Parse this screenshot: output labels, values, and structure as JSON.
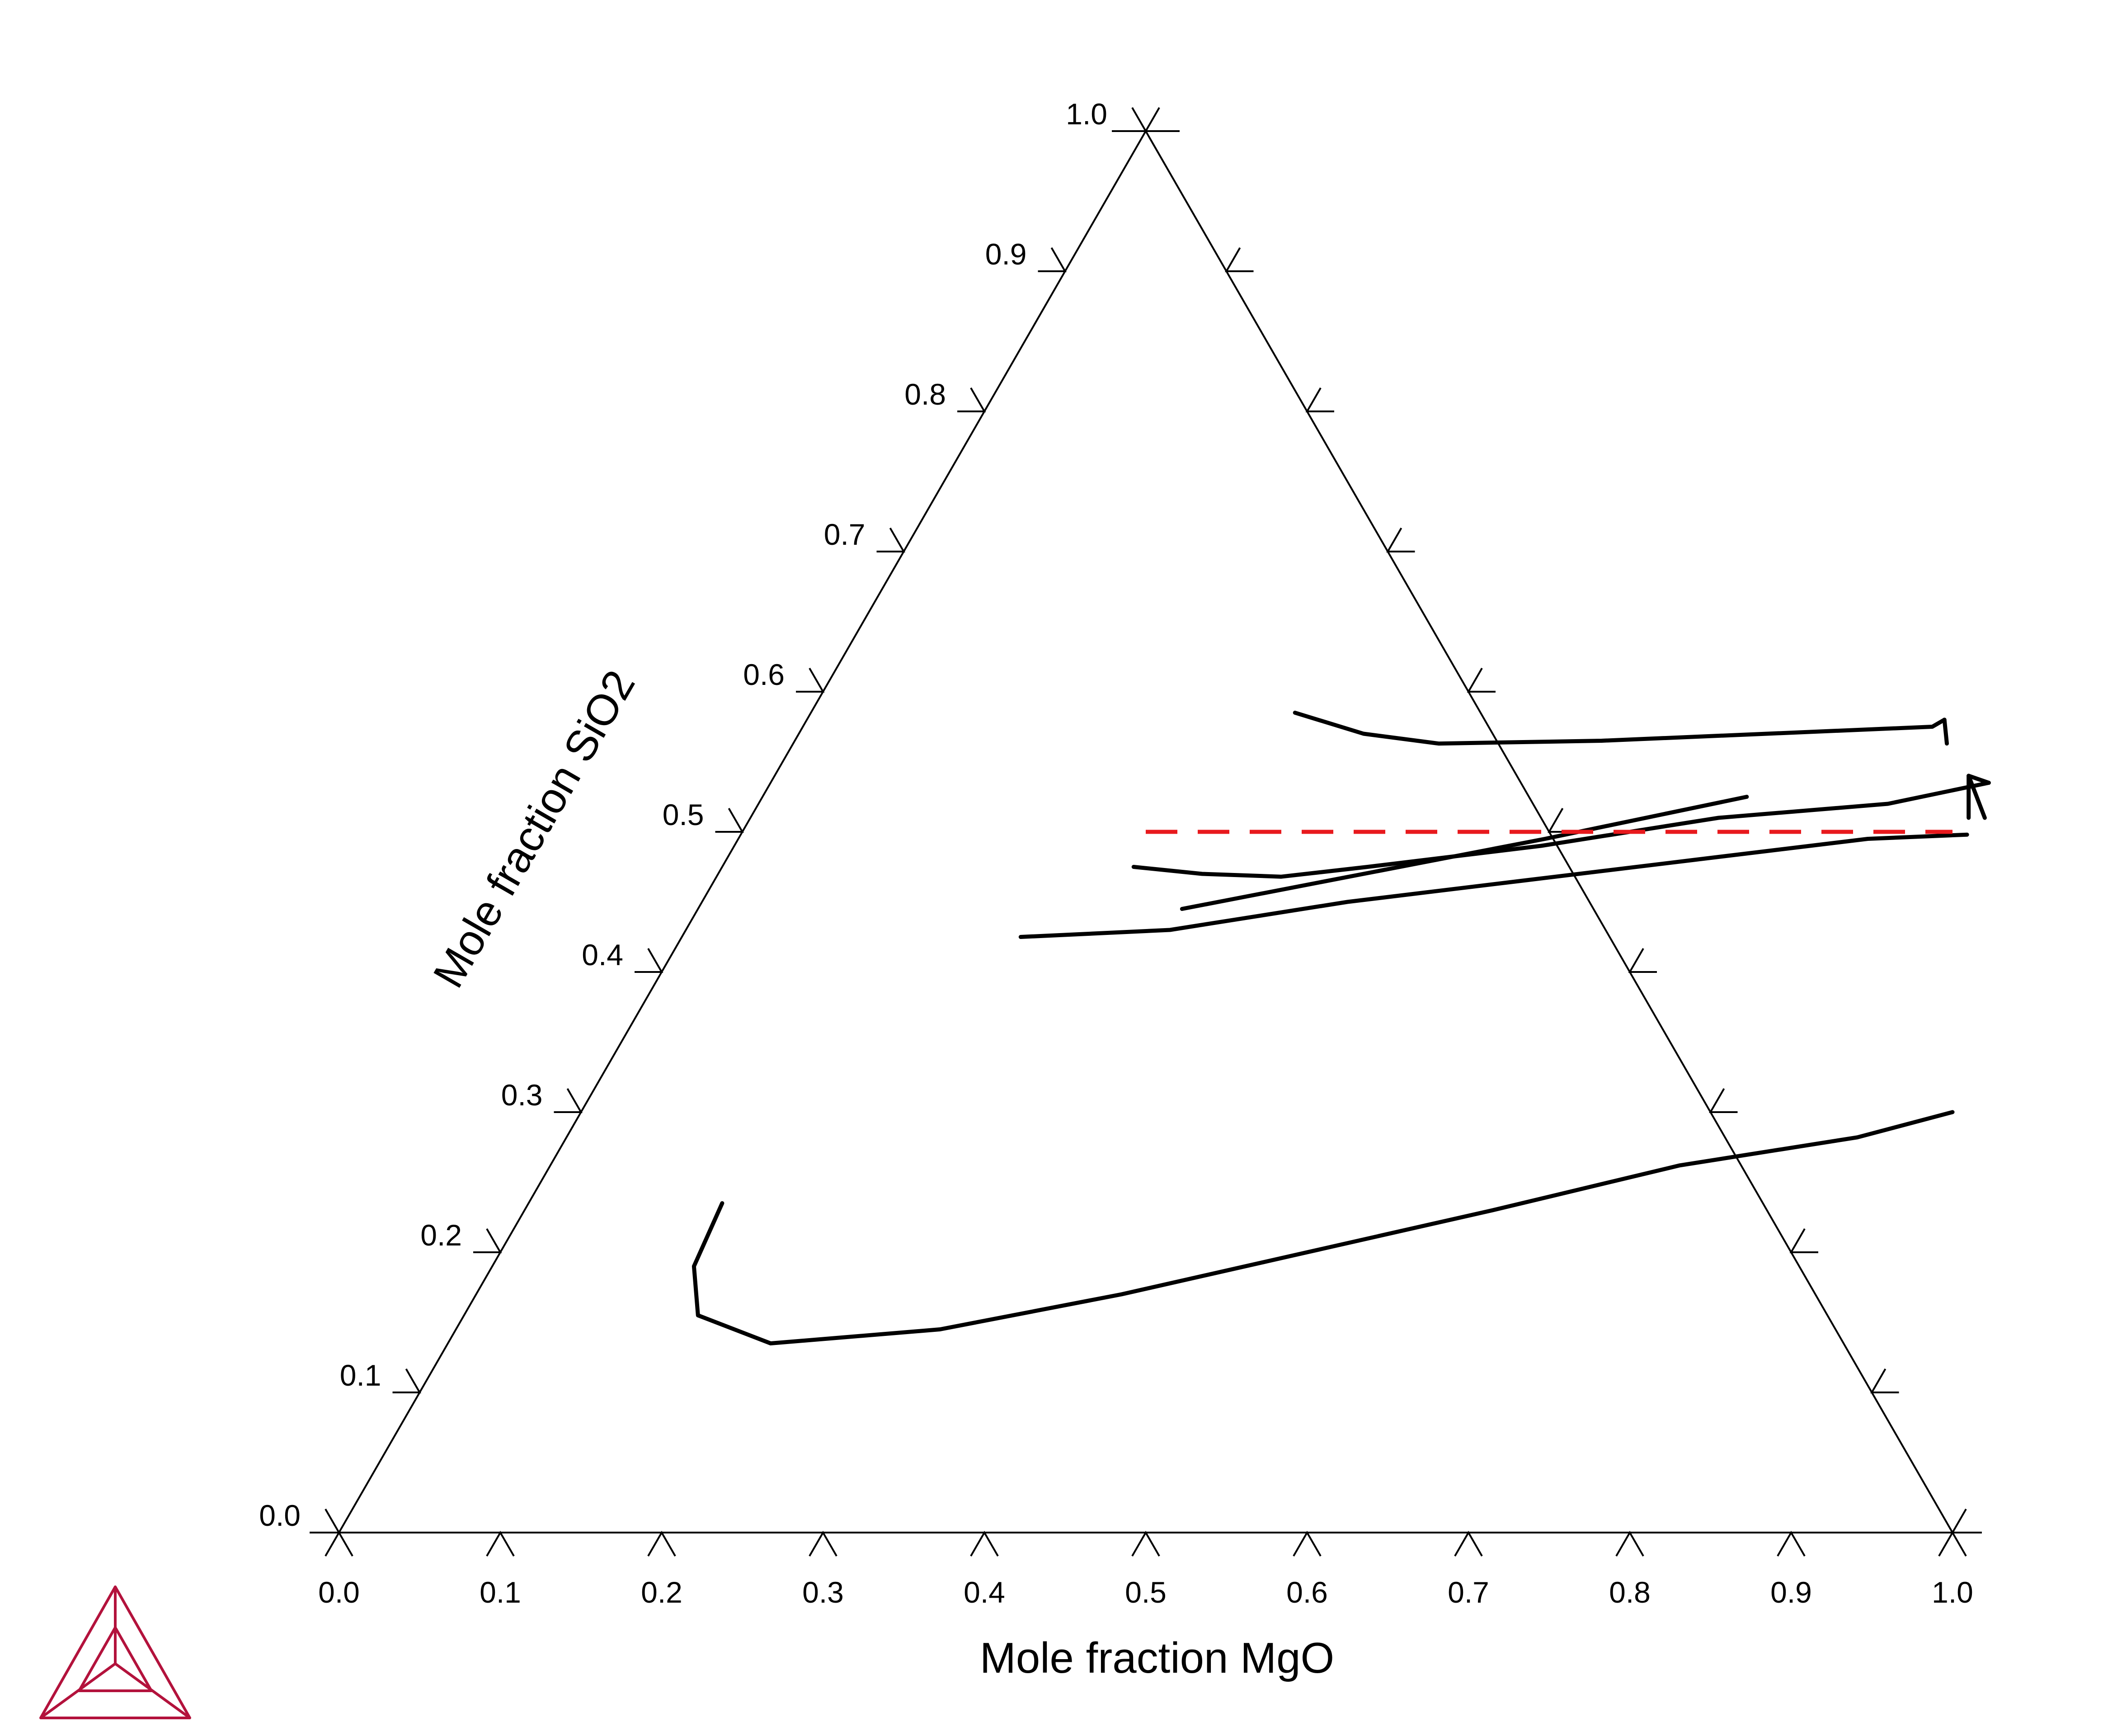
{
  "chart_data": {
    "type": "ternary",
    "xlabel": "Mole fraction MgO",
    "ylabel": "Mole fraction SiO2",
    "xlim": [
      0.0,
      1.0
    ],
    "ylim": [
      0.0,
      1.0
    ],
    "x_ticks": [
      "0.0",
      "0.1",
      "0.2",
      "0.3",
      "0.4",
      "0.5",
      "0.6",
      "0.7",
      "0.8",
      "0.9",
      "1.0"
    ],
    "y_ticks": [
      "0.0",
      "0.1",
      "0.2",
      "0.3",
      "0.4",
      "0.5",
      "0.6",
      "0.7",
      "0.8",
      "0.9",
      "1.0"
    ],
    "boundary_color": "#000000",
    "isopleth_color": "#e8191d",
    "series": [
      {
        "points": [
          [
            0.3,
            0.585
          ],
          [
            0.35,
            0.57
          ],
          [
            0.4,
            0.563
          ],
          [
            0.5,
            0.565
          ],
          [
            0.6,
            0.57
          ],
          [
            0.7,
            0.575
          ],
          [
            0.705,
            0.58
          ]
        ]
      },
      {
        "points": [
          [
            0.705,
            0.58
          ],
          [
            0.715,
            0.563
          ]
        ]
      },
      {
        "points": [
          [
            0.255,
            0.475
          ],
          [
            0.3,
            0.47
          ],
          [
            0.35,
            0.468
          ],
          [
            0.4,
            0.475
          ],
          [
            0.5,
            0.49
          ],
          [
            0.6,
            0.51
          ],
          [
            0.7,
            0.52
          ],
          [
            0.755,
            0.535
          ]
        ]
      },
      {
        "points": [
          [
            0.755,
            0.535
          ],
          [
            0.74,
            0.54
          ],
          [
            0.755,
            0.51
          ]
        ]
      },
      {
        "points": [
          [
            0.74,
            0.54
          ],
          [
            0.765,
            0.51
          ]
        ]
      },
      {
        "points": [
          [
            0.3,
            0.445
          ],
          [
            0.4,
            0.47
          ],
          [
            0.5,
            0.495
          ],
          [
            0.61,
            0.525
          ]
        ]
      },
      {
        "points": [
          [
            0.21,
            0.425
          ],
          [
            0.3,
            0.43
          ],
          [
            0.4,
            0.45
          ],
          [
            0.5,
            0.465
          ],
          [
            0.6,
            0.48
          ],
          [
            0.7,
            0.495
          ],
          [
            0.76,
            0.498
          ]
        ]
      },
      {
        "points": [
          [
            0.12,
            0.235
          ],
          [
            0.125,
            0.19
          ],
          [
            0.145,
            0.155
          ],
          [
            0.2,
            0.135
          ],
          [
            0.3,
            0.145
          ],
          [
            0.4,
            0.17
          ],
          [
            0.5,
            0.2
          ],
          [
            0.6,
            0.23
          ],
          [
            0.7,
            0.262
          ],
          [
            0.8,
            0.282
          ],
          [
            0.85,
            0.3
          ]
        ]
      }
    ],
    "isopleth": {
      "SiO2": 0.5,
      "from_MgO": 0.25,
      "to_MgO": 0.75
    },
    "grid": false,
    "legend": "none"
  }
}
